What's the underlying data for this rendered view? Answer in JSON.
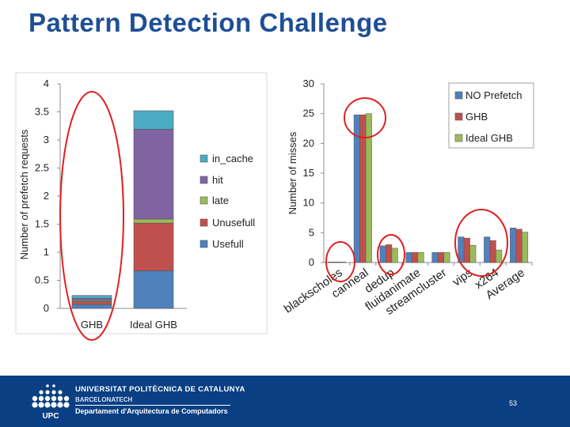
{
  "slide": {
    "title": "Pattern Detection Challenge",
    "page_number": "53"
  },
  "footer": {
    "university": "UNIVERSITAT POLITÈCNICA DE CATALUNYA",
    "campus": "BARCELONATECH",
    "department": "Departament d'Arquitectura de Computadors",
    "logo_text": "UPC"
  },
  "colors": {
    "title": "#1f4e96",
    "footer_bg": "#0a3f83",
    "highlight_circle": "#e02020",
    "in_cache": "#4bacc6",
    "hit": "#8064a2",
    "late": "#9bbb59",
    "unusefull": "#c0504d",
    "usefull": "#4f81bd",
    "no_prefetch": "#4f81bd",
    "ghb": "#c0504d",
    "ideal_ghb": "#9bbb59"
  },
  "chart_data": [
    {
      "type": "bar",
      "stacked": true,
      "ylabel": "Number of prefetch requests",
      "xlabel": "",
      "ylim": [
        0,
        4
      ],
      "yticks": [
        "0",
        "0.5",
        "1",
        "1.5",
        "2",
        "2.5",
        "3",
        "3.5",
        "4"
      ],
      "grid": false,
      "legend_position": "right",
      "categories": [
        "GHB",
        "Ideal GHB"
      ],
      "series": [
        {
          "name": "Usefull",
          "values": [
            0.07,
            0.67
          ]
        },
        {
          "name": "Unusefull",
          "values": [
            0.05,
            0.85
          ]
        },
        {
          "name": "late",
          "values": [
            0.02,
            0.07
          ]
        },
        {
          "name": "hit",
          "values": [
            0.04,
            1.6
          ]
        },
        {
          "name": "in_cache",
          "values": [
            0.05,
            0.33
          ]
        }
      ],
      "legend_order": [
        "in_cache",
        "hit",
        "late",
        "Unusefull",
        "Usefull"
      ],
      "highlighted": [
        "GHB"
      ]
    },
    {
      "type": "bar",
      "ylabel": "Number of misses",
      "xlabel": "",
      "ylim": [
        0,
        30
      ],
      "yticks": [
        "0",
        "5",
        "10",
        "15",
        "20",
        "25",
        "30"
      ],
      "grid": false,
      "legend_position": "top-right",
      "categories": [
        "blackscholes",
        "canneal",
        "dedup",
        "fluidanimate",
        "streamcluster",
        "vips",
        "x264",
        "Average"
      ],
      "series": [
        {
          "name": "NO Prefetch",
          "values": [
            0.1,
            24.8,
            2.8,
            1.7,
            1.7,
            4.3,
            4.3,
            5.8
          ]
        },
        {
          "name": "GHB",
          "values": [
            0.1,
            24.8,
            3.0,
            1.7,
            1.7,
            4.1,
            3.7,
            5.6
          ]
        },
        {
          "name": "Ideal GHB",
          "values": [
            0.1,
            25.0,
            2.4,
            1.7,
            1.7,
            2.9,
            2.1,
            5.1
          ]
        }
      ],
      "highlighted": [
        "blackscholes",
        "canneal",
        "dedup",
        "vips",
        "x264"
      ]
    }
  ]
}
